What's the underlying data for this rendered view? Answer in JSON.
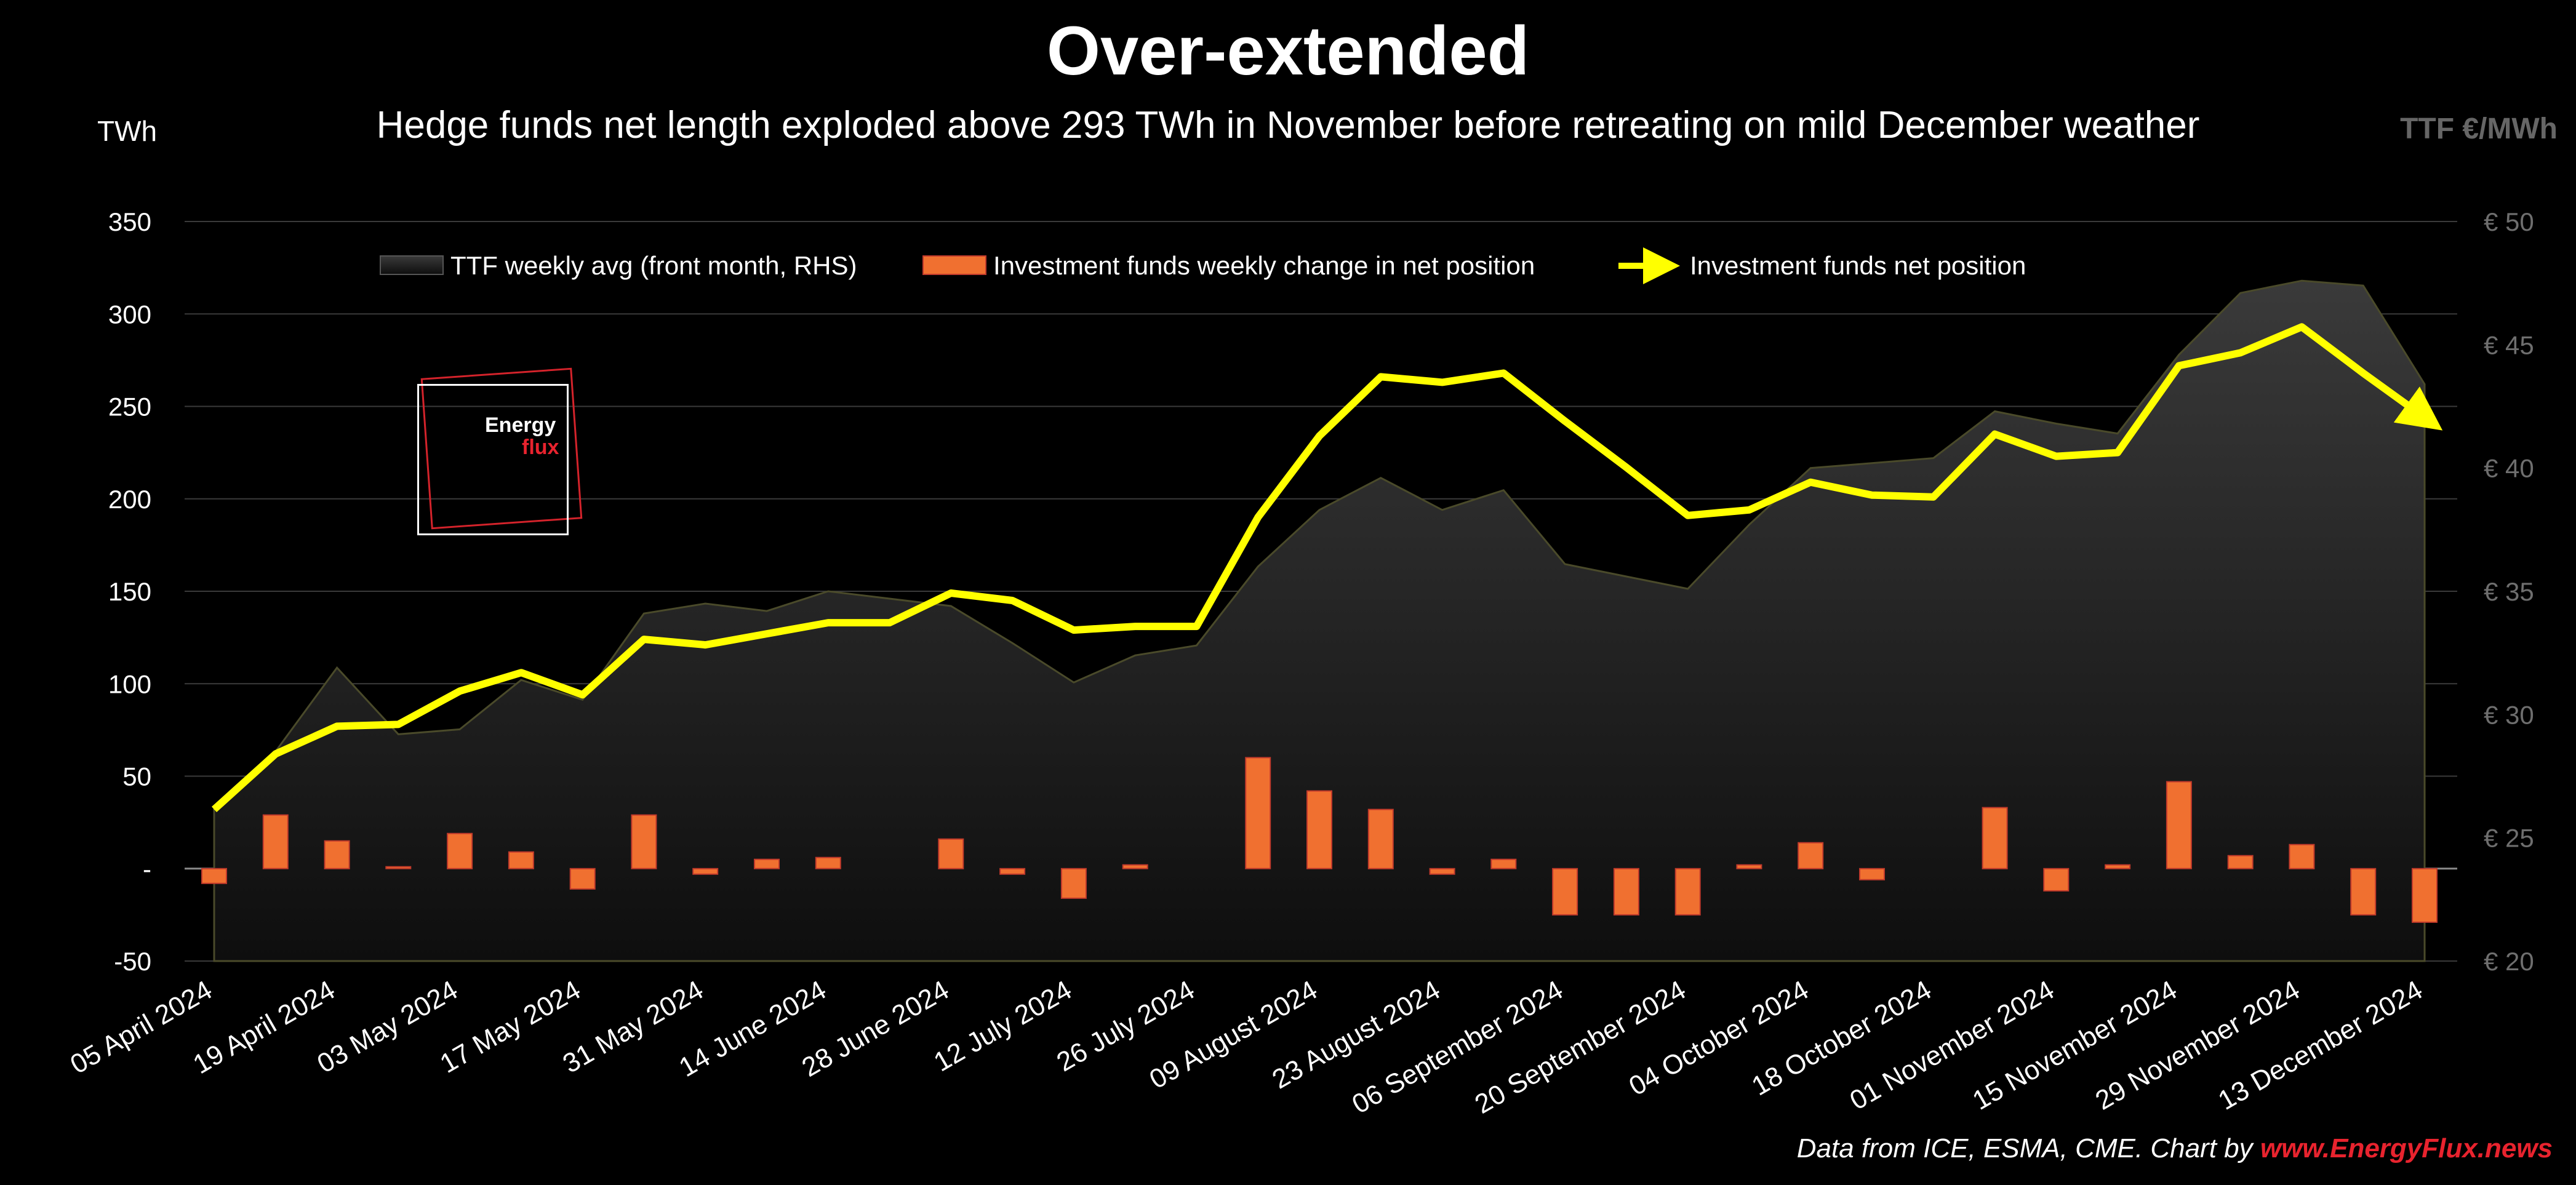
{
  "title": "Over-extended",
  "subtitle": "Hedge funds net length exploded above 293 TWh in November before retreating on mild December weather",
  "footer": {
    "prefix": "Data from ICE, ESMA, CME. Chart by ",
    "link": "www.EnergyFlux.news"
  },
  "logo": {
    "line1": "Energy",
    "line2": "flux"
  },
  "colors": {
    "background": "#000000",
    "net_position_line": "#ffff00",
    "weekly_change_bar": "#f07030",
    "bar_outline": "#c0392b",
    "ttf_area_top": "#3a3a3a",
    "ttf_area_bottom": "#0e0e0e"
  },
  "chart_data": {
    "type": "bar+line+area",
    "ylabel": "TWh",
    "y2label": "TTF €/MWh",
    "ylim": [
      -50,
      350
    ],
    "y2lim": [
      20,
      50
    ],
    "yticks": [
      "-50",
      "-",
      "50",
      "100",
      "150",
      "200",
      "250",
      "300",
      "350"
    ],
    "yticks_values": [
      -50,
      0,
      50,
      100,
      150,
      200,
      250,
      300,
      350
    ],
    "y2ticks": [
      "€ 20",
      "€ 25",
      "€ 30",
      "€ 35",
      "€ 40",
      "€ 45",
      "€ 50"
    ],
    "y2ticks_values": [
      20,
      25,
      30,
      35,
      40,
      45,
      50
    ],
    "grid": true,
    "legend_position": "top",
    "x_tick_labels": [
      "05 April 2024",
      "19 April 2024",
      "03 May 2024",
      "17 May 2024",
      "31 May 2024",
      "14 June 2024",
      "28 June 2024",
      "12 July 2024",
      "26 July 2024",
      "09 August 2024",
      "23 August 2024",
      "06 September 2024",
      "20 September 2024",
      "04 October 2024",
      "18 October 2024",
      "01 November 2024",
      "15 November 2024",
      "29 November 2024",
      "13 December 2024"
    ],
    "weeks": 37,
    "series": [
      {
        "name": "TTF weekly avg (front month, RHS)",
        "type": "area",
        "axis": "right",
        "values": [
          26.3,
          28.5,
          31.9,
          29.2,
          29.4,
          31.4,
          30.6,
          34.1,
          34.5,
          34.2,
          35.0,
          34.7,
          34.4,
          32.9,
          31.3,
          32.4,
          32.8,
          36.0,
          38.3,
          39.6,
          38.3,
          39.1,
          36.1,
          35.6,
          35.1,
          37.7,
          40.0,
          40.2,
          40.4,
          42.3,
          41.8,
          41.4,
          44.6,
          47.1,
          47.6,
          47.4,
          43.4
        ]
      },
      {
        "name": "Investment funds weekly change in net position",
        "type": "bar",
        "axis": "left",
        "values": [
          -8,
          29,
          15,
          1,
          19,
          9,
          -11,
          29,
          -3,
          5,
          6,
          0,
          16,
          -3,
          -16,
          2,
          0,
          60,
          42,
          32,
          -3,
          5,
          -25,
          -25,
          -25,
          2,
          14,
          -6,
          0,
          33,
          -12,
          2,
          47,
          7,
          13,
          -25,
          -29
        ]
      },
      {
        "name": "Investment funds net position",
        "type": "line",
        "axis": "left",
        "values": [
          32,
          62,
          77,
          78,
          96,
          106,
          94,
          124,
          121,
          127,
          133,
          133,
          149,
          145,
          129,
          131,
          131,
          190,
          234,
          266,
          263,
          268,
          242,
          217,
          191,
          194,
          209,
          202,
          201,
          235,
          223,
          225,
          272,
          279,
          293,
          268,
          244
        ]
      }
    ]
  }
}
